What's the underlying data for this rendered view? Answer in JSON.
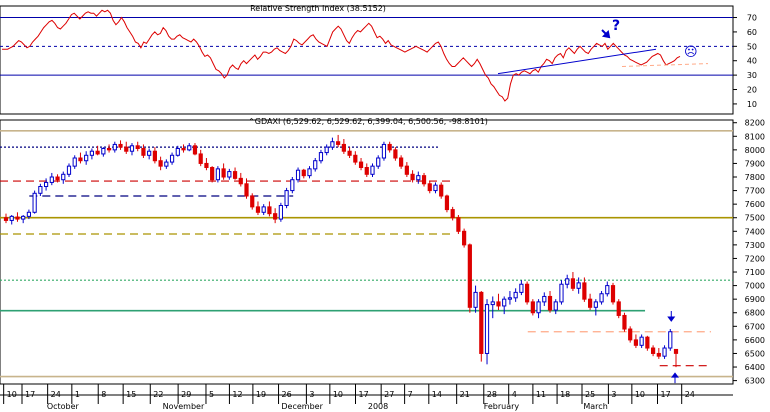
{
  "rsi": {
    "title": "Relative Strength Index (38.5152)",
    "yticks": [
      10,
      20,
      30,
      40,
      50,
      60,
      70
    ],
    "ylim": [
      3,
      78
    ],
    "hlines": [
      30,
      50,
      70
    ],
    "colors": {
      "line": "#dd0000",
      "trend": "#0000cc",
      "level": "#0000aa"
    },
    "values": [
      48,
      48,
      48,
      49,
      50,
      52,
      54,
      53,
      51,
      49,
      50,
      53,
      55,
      57,
      60,
      63,
      65,
      67,
      68,
      66,
      63,
      62,
      64,
      66,
      69,
      72,
      73,
      71,
      69,
      71,
      73,
      74,
      73,
      73,
      71,
      73,
      75,
      74,
      75,
      73,
      68,
      65,
      67,
      70,
      67,
      63,
      60,
      57,
      53,
      52,
      49,
      53,
      52,
      55,
      58,
      60,
      58,
      59,
      63,
      61,
      57,
      55,
      55,
      57,
      58,
      56,
      55,
      54,
      53,
      55,
      53,
      50,
      46,
      43,
      44,
      42,
      38,
      34,
      33,
      31,
      28,
      30,
      35,
      37,
      35,
      34,
      38,
      40,
      38,
      40,
      42,
      44,
      41,
      43,
      46,
      46,
      45,
      46,
      48,
      49,
      47,
      46,
      45,
      47,
      50,
      55,
      54,
      52,
      51,
      53,
      55,
      57,
      58,
      55,
      53,
      52,
      51,
      50,
      55,
      60,
      62,
      64,
      62,
      58,
      54,
      52,
      56,
      59,
      61,
      60,
      62,
      64,
      66,
      64,
      60,
      56,
      57,
      55,
      52,
      54,
      51,
      50,
      49,
      48,
      47,
      46,
      47,
      48,
      49,
      50,
      49,
      48,
      47,
      46,
      48,
      50,
      52,
      53,
      50,
      45,
      41,
      38,
      36,
      36,
      38,
      40,
      42,
      40,
      38,
      36,
      38,
      41,
      38,
      34,
      30,
      28,
      24,
      22,
      19,
      16,
      15,
      12,
      14,
      24,
      30,
      31,
      30,
      32,
      33,
      32,
      31,
      33,
      34,
      32,
      36,
      38,
      41,
      40,
      38,
      42,
      44,
      45,
      42,
      47,
      49,
      47,
      45,
      48,
      50,
      48,
      46,
      45,
      48,
      50,
      52,
      51,
      50,
      52,
      48,
      50,
      52,
      50,
      48,
      46,
      44,
      43,
      41,
      40,
      39,
      38,
      37,
      38,
      39,
      41,
      43,
      44,
      45,
      44,
      40,
      37,
      38,
      39,
      40,
      42,
      43
    ]
  },
  "price": {
    "title": "^GDAXI (6,529.62, 6,529.62, 6,399.04, 6,500.56, -98.8101)",
    "yticks": [
      6300,
      6400,
      6500,
      6600,
      6700,
      6800,
      6900,
      7000,
      7100,
      7200,
      7300,
      7400,
      7500,
      7600,
      7700,
      7800,
      7900,
      8000,
      8100,
      8200
    ],
    "ylim": [
      6275,
      8220
    ],
    "colors": {
      "up": "#0000cc",
      "down": "#dd0000"
    },
    "hlines": [
      {
        "y": 8140,
        "color": "#c8b48c",
        "style": "solid",
        "x0": 0,
        "x1": 1
      },
      {
        "y": 8020,
        "color": "#000080",
        "style": "dotted",
        "x0": 0,
        "x1": 0.6
      },
      {
        "y": 7770,
        "color": "#cc0000",
        "style": "dashed",
        "x0": 0,
        "x1": 0.62
      },
      {
        "y": 7660,
        "color": "#000080",
        "style": "dashed",
        "x0": 0.04,
        "x1": 0.4
      },
      {
        "y": 7500,
        "color": "#aa9400",
        "style": "solid",
        "x0": 0,
        "x1": 1
      },
      {
        "y": 7380,
        "color": "#aa9400",
        "style": "dashed",
        "x0": 0,
        "x1": 0.62
      },
      {
        "y": 7040,
        "color": "#33aa66",
        "style": "dotted",
        "x0": 0,
        "x1": 1
      },
      {
        "y": 6815,
        "color": "#2ea073",
        "style": "solid",
        "x0": 0,
        "x1": 0.88
      },
      {
        "y": 6660,
        "color": "#ffaa88",
        "style": "dashed",
        "x0": 0.72,
        "x1": 0.97
      },
      {
        "y": 6410,
        "color": "#cc0000",
        "style": "dashed",
        "x0": 0.9,
        "x1": 0.97
      },
      {
        "y": 6330,
        "color": "#c8b48c",
        "style": "solid",
        "x0": 0,
        "x1": 1
      }
    ],
    "candles": [
      [
        7500,
        7530,
        7460,
        7480
      ],
      [
        7480,
        7520,
        7450,
        7510
      ],
      [
        7505,
        7540,
        7470,
        7490
      ],
      [
        7490,
        7520,
        7460,
        7510
      ],
      [
        7510,
        7560,
        7490,
        7540
      ],
      [
        7540,
        7700,
        7530,
        7680
      ],
      [
        7680,
        7750,
        7660,
        7730
      ],
      [
        7730,
        7790,
        7700,
        7760
      ],
      [
        7760,
        7830,
        7740,
        7800
      ],
      [
        7800,
        7820,
        7760,
        7780
      ],
      [
        7780,
        7840,
        7750,
        7820
      ],
      [
        7820,
        7900,
        7800,
        7880
      ],
      [
        7880,
        7960,
        7860,
        7940
      ],
      [
        7940,
        7980,
        7900,
        7920
      ],
      [
        7920,
        7990,
        7890,
        7960
      ],
      [
        7960,
        8010,
        7930,
        7990
      ],
      [
        7990,
        8030,
        7960,
        7970
      ],
      [
        7970,
        8020,
        7950,
        8010
      ],
      [
        8010,
        8040,
        7980,
        8000
      ],
      [
        8000,
        8060,
        7980,
        8040
      ],
      [
        8040,
        8070,
        8000,
        8020
      ],
      [
        8020,
        8060,
        7970,
        7990
      ],
      [
        7990,
        8050,
        7960,
        8030
      ],
      [
        8030,
        8060,
        7990,
        8010
      ],
      [
        8010,
        8040,
        7940,
        7960
      ],
      [
        7960,
        8010,
        7930,
        7990
      ],
      [
        7990,
        8020,
        7900,
        7920
      ],
      [
        7920,
        7950,
        7850,
        7880
      ],
      [
        7880,
        7930,
        7860,
        7910
      ],
      [
        7910,
        7980,
        7890,
        7960
      ],
      [
        7960,
        8030,
        7950,
        8010
      ],
      [
        8010,
        8040,
        7980,
        8000
      ],
      [
        8000,
        8050,
        7990,
        8030
      ],
      [
        8030,
        8050,
        7960,
        7970
      ],
      [
        7970,
        8000,
        7880,
        7900
      ],
      [
        7900,
        7940,
        7850,
        7870
      ],
      [
        7870,
        7880,
        7760,
        7780
      ],
      [
        7780,
        7880,
        7760,
        7860
      ],
      [
        7860,
        7900,
        7780,
        7800
      ],
      [
        7800,
        7860,
        7780,
        7840
      ],
      [
        7840,
        7870,
        7780,
        7790
      ],
      [
        7790,
        7830,
        7730,
        7750
      ],
      [
        7750,
        7790,
        7640,
        7660
      ],
      [
        7660,
        7680,
        7560,
        7580
      ],
      [
        7580,
        7620,
        7520,
        7540
      ],
      [
        7540,
        7600,
        7520,
        7580
      ],
      [
        7580,
        7620,
        7510,
        7530
      ],
      [
        7530,
        7570,
        7460,
        7490
      ],
      [
        7490,
        7610,
        7470,
        7590
      ],
      [
        7590,
        7720,
        7570,
        7700
      ],
      [
        7700,
        7800,
        7680,
        7780
      ],
      [
        7780,
        7870,
        7760,
        7850
      ],
      [
        7850,
        7860,
        7790,
        7810
      ],
      [
        7810,
        7880,
        7790,
        7860
      ],
      [
        7860,
        7940,
        7840,
        7920
      ],
      [
        7920,
        8000,
        7900,
        7980
      ],
      [
        7980,
        8040,
        7960,
        8020
      ],
      [
        8020,
        8090,
        8000,
        8060
      ],
      [
        8060,
        8110,
        8020,
        8040
      ],
      [
        8040,
        8080,
        7970,
        7990
      ],
      [
        7990,
        8020,
        7940,
        7960
      ],
      [
        7960,
        7990,
        7890,
        7910
      ],
      [
        7910,
        7940,
        7850,
        7870
      ],
      [
        7870,
        7900,
        7800,
        7820
      ],
      [
        7820,
        7900,
        7800,
        7880
      ],
      [
        7880,
        7960,
        7860,
        7940
      ],
      [
        7940,
        8060,
        7920,
        8040
      ],
      [
        8040,
        8060,
        7980,
        8000
      ],
      [
        8000,
        8020,
        7920,
        7940
      ],
      [
        7940,
        7960,
        7860,
        7880
      ],
      [
        7880,
        7910,
        7800,
        7820
      ],
      [
        7820,
        7850,
        7760,
        7780
      ],
      [
        7780,
        7840,
        7750,
        7810
      ],
      [
        7810,
        7830,
        7730,
        7750
      ],
      [
        7750,
        7770,
        7680,
        7700
      ],
      [
        7700,
        7760,
        7680,
        7740
      ],
      [
        7740,
        7760,
        7640,
        7660
      ],
      [
        7660,
        7670,
        7540,
        7560
      ],
      [
        7560,
        7580,
        7480,
        7500
      ],
      [
        7500,
        7520,
        7380,
        7400
      ],
      [
        7400,
        7420,
        7280,
        7300
      ],
      [
        7300,
        7310,
        6800,
        6840
      ],
      [
        6840,
        7000,
        6800,
        6950
      ],
      [
        6950,
        6960,
        6440,
        6500
      ],
      [
        6500,
        6900,
        6420,
        6860
      ],
      [
        6860,
        6920,
        6760,
        6880
      ],
      [
        6880,
        6940,
        6820,
        6850
      ],
      [
        6850,
        6920,
        6790,
        6900
      ],
      [
        6900,
        6960,
        6860,
        6910
      ],
      [
        6910,
        6980,
        6880,
        6950
      ],
      [
        6950,
        7040,
        6930,
        7010
      ],
      [
        7010,
        7030,
        6860,
        6880
      ],
      [
        6880,
        6900,
        6780,
        6800
      ],
      [
        6800,
        6900,
        6760,
        6880
      ],
      [
        6880,
        6950,
        6850,
        6920
      ],
      [
        6920,
        6960,
        6800,
        6820
      ],
      [
        6820,
        6900,
        6790,
        6880
      ],
      [
        6880,
        7040,
        6860,
        7010
      ],
      [
        7010,
        7080,
        6980,
        7050
      ],
      [
        7050,
        7100,
        6960,
        6980
      ],
      [
        6980,
        7060,
        6940,
        7020
      ],
      [
        7020,
        7060,
        6880,
        6900
      ],
      [
        6900,
        6940,
        6820,
        6840
      ],
      [
        6840,
        6900,
        6780,
        6880
      ],
      [
        6880,
        6960,
        6860,
        6940
      ],
      [
        6940,
        7030,
        6920,
        7000
      ],
      [
        7000,
        7020,
        6860,
        6880
      ],
      [
        6880,
        6900,
        6760,
        6780
      ],
      [
        6780,
        6800,
        6660,
        6680
      ],
      [
        6680,
        6700,
        6580,
        6600
      ],
      [
        6600,
        6640,
        6540,
        6560
      ],
      [
        6560,
        6640,
        6540,
        6620
      ],
      [
        6620,
        6630,
        6520,
        6540
      ],
      [
        6540,
        6560,
        6480,
        6500
      ],
      [
        6500,
        6540,
        6460,
        6480
      ],
      [
        6480,
        6560,
        6460,
        6540
      ],
      [
        6540,
        6680,
        6520,
        6660
      ],
      [
        6529.62,
        6529.62,
        6399.04,
        6500.56
      ]
    ],
    "arrow_down_index": 116,
    "arrow_up_index": 117
  },
  "xaxis": {
    "ticks": [
      {
        "label": "10",
        "pos": 0.005
      },
      {
        "label": "17",
        "pos": 0.03
      },
      {
        "label": "24",
        "pos": 0.065
      },
      {
        "label": "1",
        "pos": 0.098
      },
      {
        "label": "8",
        "pos": 0.134
      },
      {
        "label": "15",
        "pos": 0.168
      },
      {
        "label": "22",
        "pos": 0.205
      },
      {
        "label": "29",
        "pos": 0.243
      },
      {
        "label": "5",
        "pos": 0.281
      },
      {
        "label": "12",
        "pos": 0.313
      },
      {
        "label": "19",
        "pos": 0.345
      },
      {
        "label": "26",
        "pos": 0.38
      },
      {
        "label": "3",
        "pos": 0.418
      },
      {
        "label": "10",
        "pos": 0.45
      },
      {
        "label": "17",
        "pos": 0.485
      },
      {
        "label": "27",
        "pos": 0.52
      },
      {
        "label": "7",
        "pos": 0.552
      },
      {
        "label": "14",
        "pos": 0.585
      },
      {
        "label": "21",
        "pos": 0.623
      },
      {
        "label": "28",
        "pos": 0.66
      },
      {
        "label": "4",
        "pos": 0.694
      },
      {
        "label": "11",
        "pos": 0.727
      },
      {
        "label": "18",
        "pos": 0.76
      },
      {
        "label": "25",
        "pos": 0.794
      },
      {
        "label": "3",
        "pos": 0.83
      },
      {
        "label": "10",
        "pos": 0.862
      },
      {
        "label": "17",
        "pos": 0.897
      },
      {
        "label": "24",
        "pos": 0.93
      }
    ],
    "months": [
      {
        "label": "October",
        "pos": 0.098
      },
      {
        "label": "November",
        "pos": 0.256
      },
      {
        "label": "December",
        "pos": 0.418
      },
      {
        "label": "2008",
        "pos": 0.536
      },
      {
        "label": "February",
        "pos": 0.694
      },
      {
        "label": "March",
        "pos": 0.83
      }
    ]
  },
  "annotations": {
    "question_mark": "?",
    "smiley": "☹"
  }
}
